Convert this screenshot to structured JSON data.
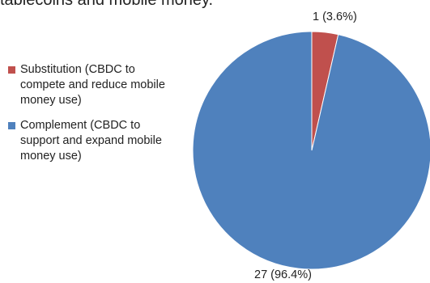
{
  "caption_fragment": "tablecoins and mobile money.",
  "colors": {
    "substitution": "#c0504d",
    "complement": "#4f81bd",
    "slice_border": "#ffffff"
  },
  "chart_data": {
    "type": "pie",
    "title": "",
    "legend_position": "left",
    "slices": [
      {
        "name": "Substitution (CBDC to compete and reduce mobile money use)",
        "value": 1,
        "percent": 3.6,
        "label": "1 (3.6%)",
        "color": "#c0504d"
      },
      {
        "name": "Complement (CBDC to support and expand mobile money use)",
        "value": 27,
        "percent": 96.4,
        "label": "27 (96.4%)",
        "color": "#4f81bd"
      }
    ]
  }
}
